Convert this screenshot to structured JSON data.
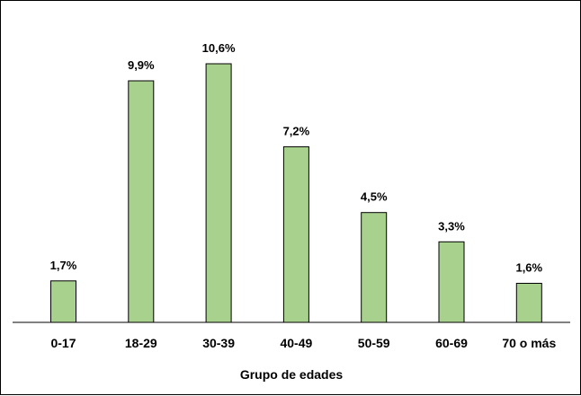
{
  "chart_data": {
    "type": "bar",
    "categories": [
      "0-17",
      "18-29",
      "30-39",
      "40-49",
      "50-59",
      "60-69",
      "70 o más"
    ],
    "values": [
      1.7,
      9.9,
      10.6,
      7.2,
      4.5,
      3.3,
      1.6
    ],
    "value_labels": [
      "1,7%",
      "9,9%",
      "10,6%",
      "7,2%",
      "4,5%",
      "3,3%",
      "1,6%"
    ],
    "title": "",
    "xlabel": "Grupo de edades",
    "ylabel": "",
    "ylim": [
      0,
      10.6
    ],
    "grid": false,
    "legend": "none",
    "colors": {
      "bar_fill": "#a9d18e",
      "bar_stroke": "#000000",
      "axis": "#000000"
    }
  }
}
